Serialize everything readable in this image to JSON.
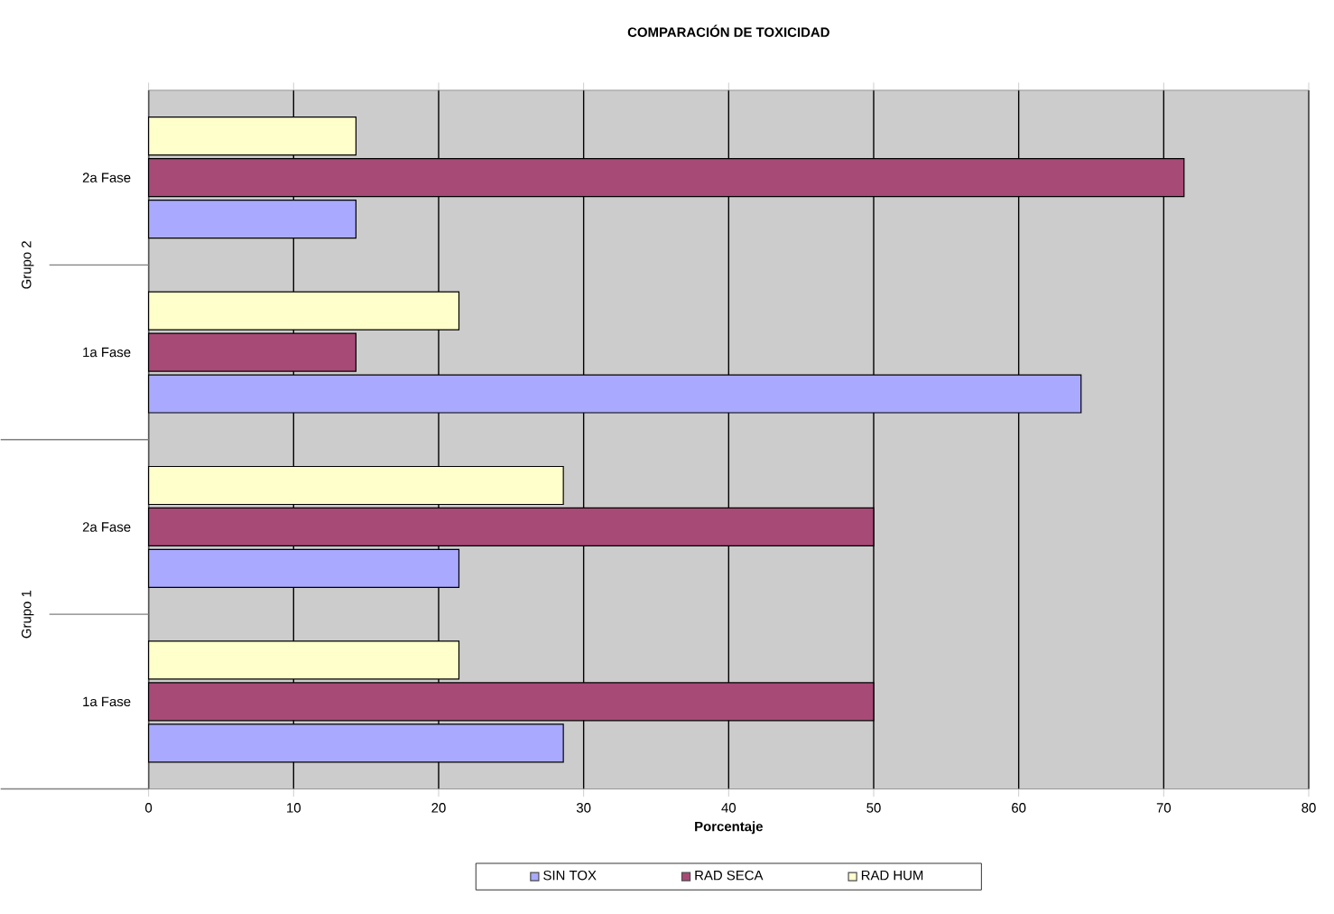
{
  "chart_data": {
    "type": "bar",
    "orientation": "horizontal",
    "title": "COMPARACIÓN DE TOXICIDAD",
    "xlabel": "Porcentaje",
    "categories": [
      "2a Fase",
      "1a Fase",
      "2a Fase",
      "1a Fase"
    ],
    "series": [
      {
        "name": "SIN TOX",
        "color": "#a9a9ff",
        "values": [
          14.3,
          64.3,
          21.4,
          28.6
        ]
      },
      {
        "name": "RAD SECA",
        "color": "#a84a76",
        "values": [
          71.4,
          14.3,
          50,
          50
        ]
      },
      {
        "name": "RAD HUM",
        "color": "#ffffcc",
        "values": [
          14.3,
          21.4,
          28.6,
          21.4
        ]
      }
    ],
    "annotations": [
      "Grupo 2",
      "Grupo 1"
    ],
    "xlim": [
      0,
      80
    ],
    "xticks": [
      0,
      10,
      20,
      30,
      40,
      50,
      60,
      70,
      80
    ],
    "grid": "x",
    "legend": "bottom"
  }
}
